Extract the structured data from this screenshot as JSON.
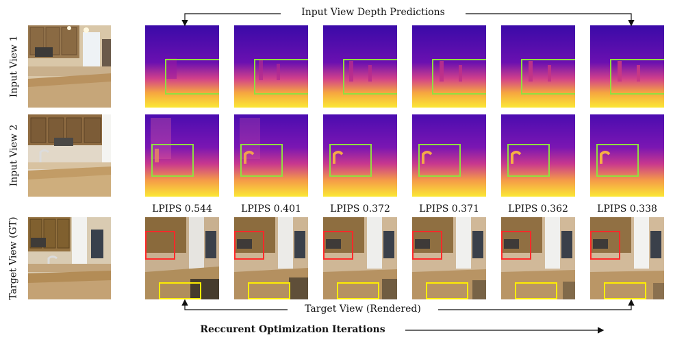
{
  "row_labels": [
    "Input View 1",
    "Input View 2",
    "Target View (GT)"
  ],
  "top_caption": "Input View Depth Predictions",
  "bottom_caption": "Target View (Rendered)",
  "x_axis_label": "Reccurent Optimization Iterations",
  "lpips": [
    "LPIPS 0.544",
    "LPIPS 0.401",
    "LPIPS 0.372",
    "LPIPS 0.371",
    "LPIPS 0.362",
    "LPIPS 0.338"
  ],
  "colors": {
    "depth_far": "#2a08a0",
    "depth_mid": "#c2308a",
    "depth_near": "#f9e030",
    "green_box": "#8fe040",
    "red_box": "#ff2a2a",
    "yellow_box": "#ffee00"
  }
}
